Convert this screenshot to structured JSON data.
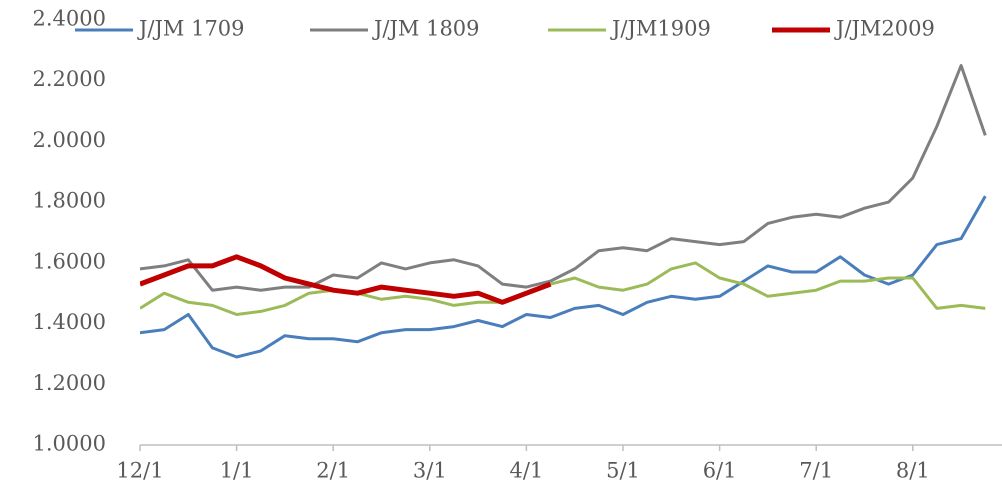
{
  "chart_data": {
    "type": "line",
    "categories": [
      "12/1",
      null,
      null,
      null,
      "1/1",
      null,
      null,
      null,
      "2/1",
      null,
      null,
      null,
      "3/1",
      null,
      null,
      null,
      "4/1",
      null,
      null,
      null,
      "5/1",
      null,
      null,
      null,
      "6/1",
      null,
      null,
      null,
      "7/1",
      null,
      null,
      null,
      "8/1",
      null,
      null,
      null
    ],
    "series": [
      {
        "name": "J/JM 1709",
        "color": "#4a7ebb",
        "values": [
          1.37,
          1.38,
          1.43,
          1.32,
          1.29,
          1.31,
          1.36,
          1.35,
          1.35,
          1.34,
          1.37,
          1.38,
          1.38,
          1.39,
          1.41,
          1.39,
          1.43,
          1.42,
          1.45,
          1.46,
          1.43,
          1.47,
          1.49,
          1.48,
          1.49,
          1.54,
          1.59,
          1.57,
          1.57,
          1.62,
          1.56,
          1.53,
          1.56,
          1.66,
          1.68,
          1.82
        ]
      },
      {
        "name": "J/JM 1809",
        "color": "#7f7f7f",
        "values": [
          1.58,
          1.59,
          1.61,
          1.51,
          1.52,
          1.51,
          1.52,
          1.52,
          1.56,
          1.55,
          1.6,
          1.58,
          1.6,
          1.61,
          1.59,
          1.53,
          1.52,
          1.54,
          1.58,
          1.64,
          1.65,
          1.64,
          1.68,
          1.67,
          1.66,
          1.67,
          1.73,
          1.75,
          1.76,
          1.75,
          1.78,
          1.8,
          1.88,
          2.05,
          2.25,
          2.02
        ]
      },
      {
        "name": "J/JM1909",
        "color": "#9bbb59",
        "values": [
          1.45,
          1.5,
          1.47,
          1.46,
          1.43,
          1.44,
          1.46,
          1.5,
          1.51,
          1.5,
          1.48,
          1.49,
          1.48,
          1.46,
          1.47,
          1.47,
          1.5,
          1.53,
          1.55,
          1.52,
          1.51,
          1.53,
          1.58,
          1.6,
          1.55,
          1.53,
          1.49,
          1.5,
          1.51,
          1.54,
          1.54,
          1.55,
          1.55,
          1.45,
          1.46,
          1.45
        ]
      },
      {
        "name": "J/JM2009",
        "color": "#c00000",
        "values": [
          1.53,
          1.56,
          1.59,
          1.59,
          1.62,
          1.59,
          1.55,
          1.53,
          1.51,
          1.5,
          1.52,
          1.51,
          1.5,
          1.49,
          1.5,
          1.47,
          1.5,
          1.53,
          null,
          null,
          null,
          null,
          null,
          null,
          null,
          null,
          null,
          null,
          null,
          null,
          null,
          null,
          null,
          null,
          null,
          null
        ]
      }
    ],
    "ylim": [
      1,
      2.4
    ],
    "yticks": [
      {
        "value": 1,
        "label": "1.0000"
      },
      {
        "value": 1.2,
        "label": "1.2000"
      },
      {
        "value": 1.4,
        "label": "1.4000"
      },
      {
        "value": 1.6,
        "label": "1.6000"
      },
      {
        "value": 1.8,
        "label": "1.8000"
      },
      {
        "value": 2,
        "label": "2.0000"
      },
      {
        "value": 2.2,
        "label": "2.2000"
      },
      {
        "value": 2.4,
        "label": "2.4000"
      }
    ],
    "legend": "top",
    "grid": false
  }
}
